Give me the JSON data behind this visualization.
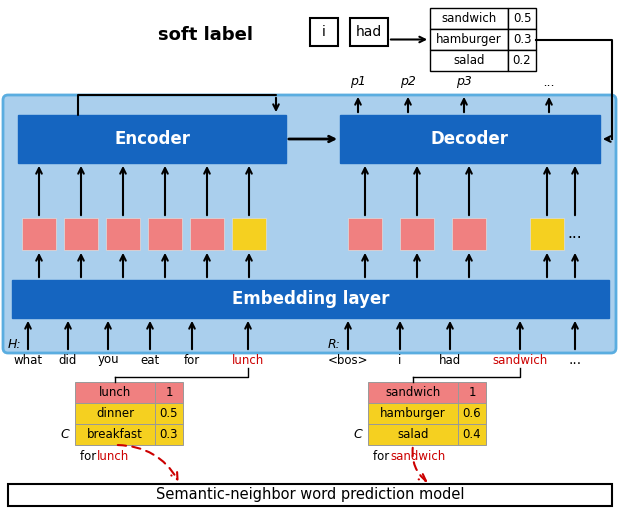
{
  "fig_width": 6.2,
  "fig_height": 5.08,
  "dpi": 100,
  "title": "Semantic-neighbor word prediction model",
  "soft_label_title": "soft label",
  "encoder_text": "Encoder",
  "decoder_text": "Decoder",
  "embed_text": "Embedding layer",
  "h_words": [
    "what",
    "did",
    "you",
    "eat",
    "for",
    "lunch"
  ],
  "r_words": [
    "<bos>",
    "i",
    "had",
    "sandwich"
  ],
  "p_labels": [
    "p1",
    "p2",
    "p3",
    "..."
  ],
  "lunch_table": [
    [
      "lunch",
      "1"
    ],
    [
      "dinner",
      "0.5"
    ],
    [
      "breakfast",
      "0.3"
    ]
  ],
  "sandwich_table": [
    [
      "sandwich",
      "1"
    ],
    [
      "hamburger",
      "0.6"
    ],
    [
      "salad",
      "0.4"
    ]
  ],
  "soft_table": [
    [
      "sandwich",
      "0.5"
    ],
    [
      "hamburger",
      "0.3"
    ],
    [
      "salad",
      "0.2"
    ]
  ],
  "c_label": "C",
  "h_label": "H:",
  "r_label": "R:",
  "light_blue": "#AACFED",
  "dark_blue": "#1565C0",
  "pink": "#F08080",
  "yellow": "#F5D020",
  "red": "#CC0000",
  "white": "#FFFFFF",
  "black": "#000000"
}
